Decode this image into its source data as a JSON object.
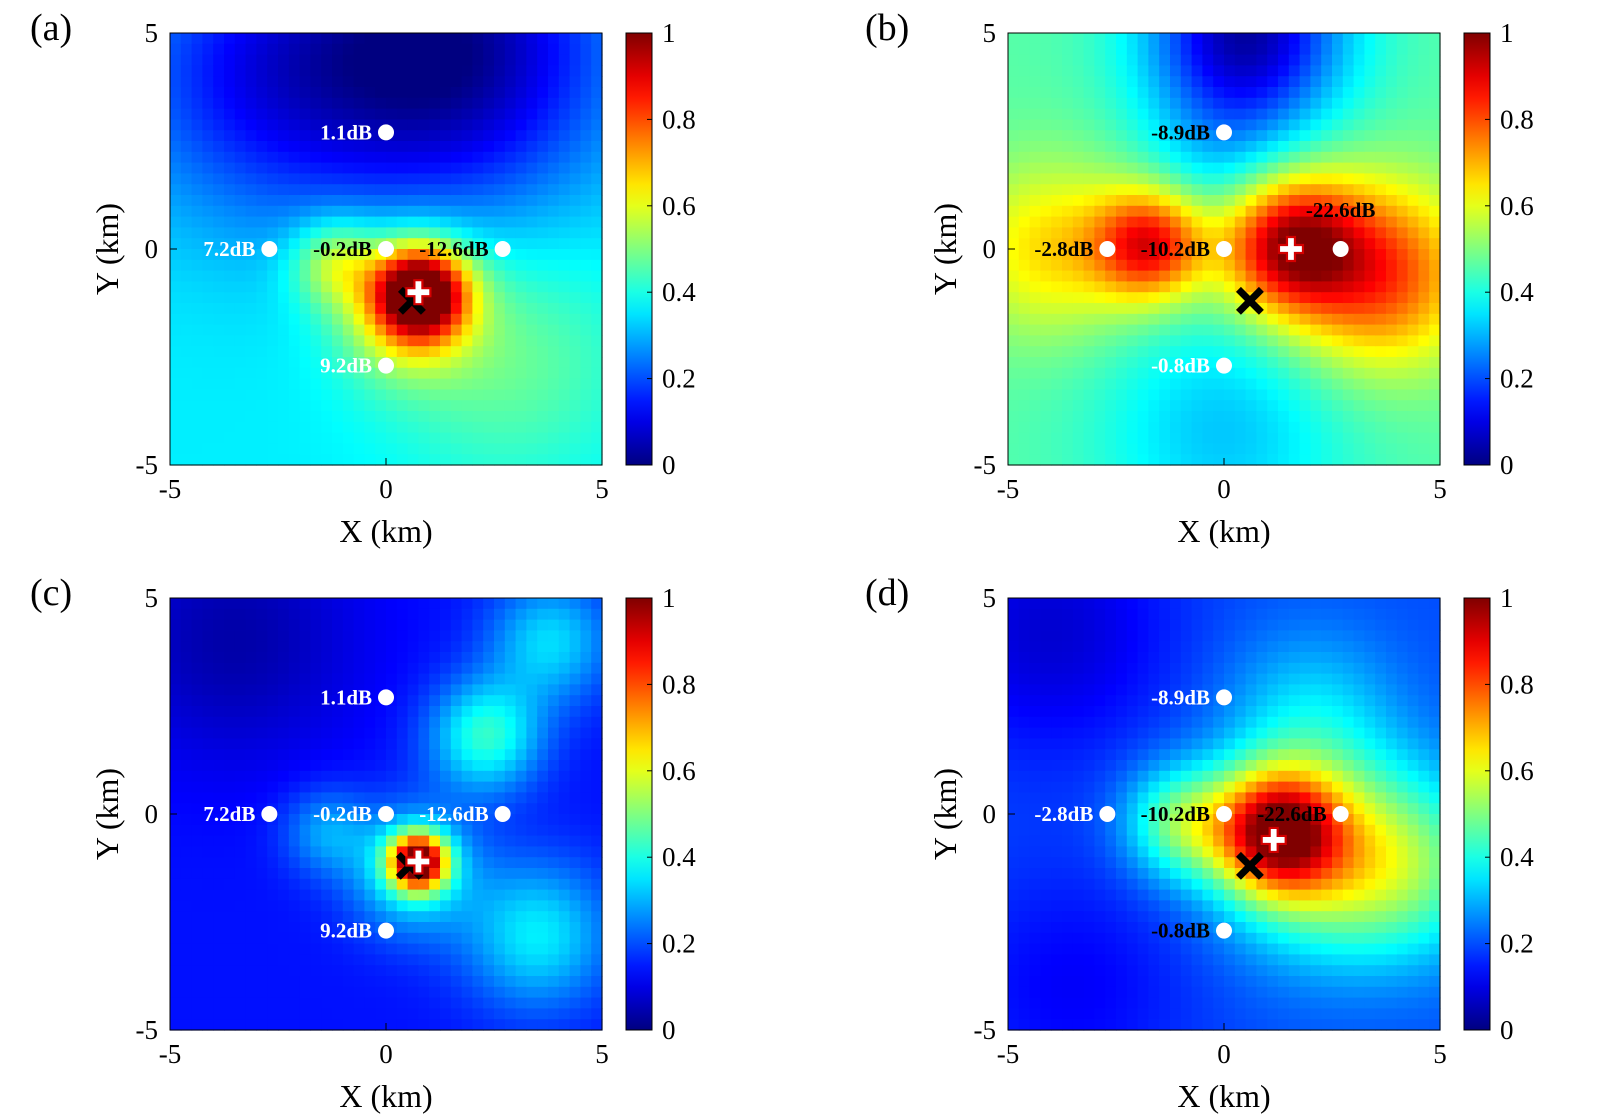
{
  "chart_data": [
    {
      "type": "heatmap",
      "panel_label": "(a)",
      "xlabel": "X (km)",
      "ylabel": "Y (km)",
      "xlim": [
        -5,
        5
      ],
      "ylim": [
        -5,
        5
      ],
      "x_ticks": [
        "-5",
        "0",
        "5"
      ],
      "y_ticks": [
        "-5",
        "0",
        "5"
      ],
      "colorbar": {
        "range": [
          0,
          1
        ],
        "ticks": [
          "0",
          "0.2",
          "0.4",
          "0.6",
          "0.8",
          "1"
        ]
      },
      "background_level": 0.36,
      "field_sources": [
        {
          "x": 0.8,
          "y": -1.0,
          "amp": 0.62,
          "sigma": 0.7
        },
        {
          "x": 0.5,
          "y": -1.3,
          "amp": 0.3,
          "sigma": 1.1
        },
        {
          "x": -1.2,
          "y": -0.3,
          "amp": 0.22,
          "sigma": 0.7
        },
        {
          "x": 2.8,
          "y": -2.5,
          "amp": 0.12,
          "sigma": 2.0
        },
        {
          "x": 1.5,
          "y": 4.5,
          "amp": -0.34,
          "sigma": 2.6
        },
        {
          "x": -3.0,
          "y": 4.0,
          "amp": -0.2,
          "sigma": 2.4
        }
      ],
      "sensors": [
        {
          "x": 0,
          "y": 2.7,
          "label": "1.1dB",
          "label_color": "#ffffff",
          "side": "left"
        },
        {
          "x": -2.7,
          "y": 0,
          "label": "7.2dB",
          "label_color": "#ffffff",
          "side": "left"
        },
        {
          "x": 0,
          "y": 0,
          "label": "-0.2dB",
          "label_color": "#000000",
          "side": "left"
        },
        {
          "x": 2.7,
          "y": 0,
          "label": "-12.6dB",
          "label_color": "#000000",
          "side": "left"
        },
        {
          "x": 0,
          "y": -2.7,
          "label": "9.2dB",
          "label_color": "#ffffff",
          "side": "left"
        }
      ],
      "true_source": {
        "x": 0.6,
        "y": -1.2
      },
      "estimate": {
        "x": 0.75,
        "y": -1.0
      }
    },
    {
      "type": "heatmap",
      "panel_label": "(b)",
      "xlabel": "X (km)",
      "ylabel": "Y (km)",
      "xlim": [
        -5,
        5
      ],
      "ylim": [
        -5,
        5
      ],
      "x_ticks": [
        "-5",
        "0",
        "5"
      ],
      "y_ticks": [
        "-5",
        "0",
        "5"
      ],
      "colorbar": {
        "range": [
          0,
          1
        ],
        "ticks": [
          "0",
          "0.2",
          "0.4",
          "0.6",
          "0.8",
          "1"
        ]
      },
      "background_level": 0.46,
      "field_sources": [
        {
          "x": -1.7,
          "y": 0.1,
          "amp": 0.42,
          "sigma": 0.9
        },
        {
          "x": 1.5,
          "y": 0.1,
          "amp": 0.48,
          "sigma": 1.1
        },
        {
          "x": 3.6,
          "y": -0.6,
          "amp": 0.36,
          "sigma": 1.5
        },
        {
          "x": -4.0,
          "y": 0.0,
          "amp": 0.2,
          "sigma": 1.4
        },
        {
          "x": 0.0,
          "y": -4.2,
          "amp": -0.14,
          "sigma": 2.0
        },
        {
          "x": 0.5,
          "y": 5.0,
          "amp": -0.42,
          "sigma": 1.6
        },
        {
          "x": 0.0,
          "y": 2.0,
          "amp": -0.1,
          "sigma": 1.3
        }
      ],
      "sensors": [
        {
          "x": 0,
          "y": 2.7,
          "label": "-8.9dB",
          "label_color": "#000000",
          "side": "left"
        },
        {
          "x": -2.7,
          "y": 0,
          "label": "-2.8dB",
          "label_color": "#000000",
          "side": "left"
        },
        {
          "x": 0,
          "y": 0,
          "label": "-10.2dB",
          "label_color": "#000000",
          "side": "left"
        },
        {
          "x": 2.7,
          "y": 0,
          "label": "-22.6dB",
          "label_color": "#000000",
          "side": "above"
        },
        {
          "x": 0,
          "y": -2.7,
          "label": "-0.8dB",
          "label_color": "#ffffff",
          "side": "left"
        }
      ],
      "true_source": {
        "x": 0.6,
        "y": -1.2
      },
      "estimate": {
        "x": 1.55,
        "y": 0.0
      }
    },
    {
      "type": "heatmap",
      "panel_label": "(c)",
      "xlabel": "X (km)",
      "ylabel": "Y (km)",
      "xlim": [
        -5,
        5
      ],
      "ylim": [
        -5,
        5
      ],
      "x_ticks": [
        "-5",
        "0",
        "5"
      ],
      "y_ticks": [
        "-5",
        "0",
        "5"
      ],
      "colorbar": {
        "range": [
          0,
          1
        ],
        "ticks": [
          "0",
          "0.2",
          "0.4",
          "0.6",
          "0.8",
          "1"
        ]
      },
      "background_level": 0.14,
      "field_sources": [
        {
          "x": 0.75,
          "y": -1.1,
          "amp": 0.78,
          "sigma": 0.45
        },
        {
          "x": 0.6,
          "y": -1.3,
          "amp": 0.25,
          "sigma": 1.0
        },
        {
          "x": 2.3,
          "y": 1.8,
          "amp": 0.28,
          "sigma": 0.9
        },
        {
          "x": 3.8,
          "y": 4.0,
          "amp": 0.2,
          "sigma": 1.0
        },
        {
          "x": 3.5,
          "y": -2.8,
          "amp": 0.22,
          "sigma": 1.2
        },
        {
          "x": -1.4,
          "y": -0.4,
          "amp": 0.14,
          "sigma": 0.7
        },
        {
          "x": -3.5,
          "y": 4.0,
          "amp": -0.1,
          "sigma": 2.0
        }
      ],
      "sensors": [
        {
          "x": 0,
          "y": 2.7,
          "label": "1.1dB",
          "label_color": "#ffffff",
          "side": "left"
        },
        {
          "x": -2.7,
          "y": 0,
          "label": "7.2dB",
          "label_color": "#ffffff",
          "side": "left"
        },
        {
          "x": 0,
          "y": 0,
          "label": "-0.2dB",
          "label_color": "#ffffff",
          "side": "left"
        },
        {
          "x": 2.7,
          "y": 0,
          "label": "-12.6dB",
          "label_color": "#ffffff",
          "side": "left"
        },
        {
          "x": 0,
          "y": -2.7,
          "label": "9.2dB",
          "label_color": "#ffffff",
          "side": "left"
        }
      ],
      "true_source": {
        "x": 0.55,
        "y": -1.2
      },
      "estimate": {
        "x": 0.75,
        "y": -1.1
      }
    },
    {
      "type": "heatmap",
      "panel_label": "(d)",
      "xlabel": "X (km)",
      "ylabel": "Y (km)",
      "xlim": [
        -5,
        5
      ],
      "ylim": [
        -5,
        5
      ],
      "x_ticks": [
        "-5",
        "0",
        "5"
      ],
      "y_ticks": [
        "-5",
        "0",
        "5"
      ],
      "colorbar": {
        "range": [
          0,
          1
        ],
        "ticks": [
          "0",
          "0.2",
          "0.4",
          "0.6",
          "0.8",
          "1"
        ]
      },
      "background_level": 0.2,
      "field_sources": [
        {
          "x": 1.2,
          "y": -0.4,
          "amp": 0.62,
          "sigma": 1.0
        },
        {
          "x": 2.2,
          "y": -1.0,
          "amp": 0.3,
          "sigma": 1.6
        },
        {
          "x": -1.0,
          "y": -0.2,
          "amp": 0.28,
          "sigma": 0.9
        },
        {
          "x": 4.3,
          "y": -1.2,
          "amp": 0.24,
          "sigma": 1.5
        },
        {
          "x": 2.0,
          "y": 2.2,
          "amp": 0.14,
          "sigma": 1.4
        },
        {
          "x": -4.0,
          "y": 4.2,
          "amp": -0.12,
          "sigma": 2.0
        },
        {
          "x": -3.5,
          "y": -4.0,
          "amp": -0.08,
          "sigma": 2.0
        }
      ],
      "sensors": [
        {
          "x": 0,
          "y": 2.7,
          "label": "-8.9dB",
          "label_color": "#ffffff",
          "side": "left"
        },
        {
          "x": -2.7,
          "y": 0,
          "label": "-2.8dB",
          "label_color": "#ffffff",
          "side": "left"
        },
        {
          "x": 0,
          "y": 0,
          "label": "-10.2dB",
          "label_color": "#000000",
          "side": "left"
        },
        {
          "x": 2.7,
          "y": 0,
          "label": "-22.6dB",
          "label_color": "#000000",
          "side": "left"
        },
        {
          "x": 0,
          "y": -2.7,
          "label": "-0.8dB",
          "label_color": "#000000",
          "side": "left"
        }
      ],
      "true_source": {
        "x": 0.6,
        "y": -1.2
      },
      "estimate": {
        "x": 1.15,
        "y": -0.6
      }
    }
  ]
}
